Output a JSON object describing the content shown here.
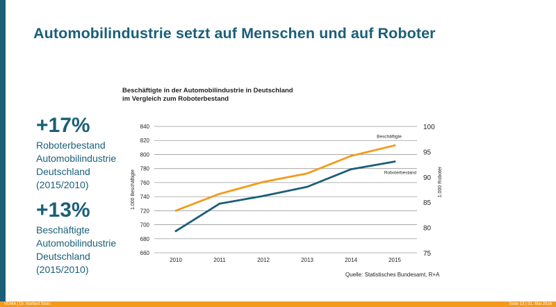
{
  "slide": {
    "title": "Automobilindustrie setzt auf Menschen und auf Roboter",
    "footer_left": "VDMA | Dr. Norbert Stein",
    "footer_right": "Seite 13 | 31. Mai 2016"
  },
  "stats": [
    {
      "value": "+17%",
      "lines": [
        "Roboterbestand",
        "Automobilindustrie",
        "Deutschland",
        "(2015/2010)"
      ]
    },
    {
      "value": "+13%",
      "lines": [
        "Beschäftigte",
        "Automobilindustrie",
        "Deutschland",
        "(2015/2010)"
      ]
    }
  ],
  "chart_data": {
    "type": "line",
    "title": [
      "Beschäftigte in der Automobilindustrie in Deutschland",
      "im Vergleich zum Roboterbestand"
    ],
    "categories": [
      "2010",
      "2011",
      "2012",
      "2013",
      "2014",
      "2015"
    ],
    "ylabel_left": "1.000 Beschäftigte",
    "ylabel_right": "1.000 Roboter",
    "ylim_left": [
      660,
      840
    ],
    "yticks_left": [
      "840",
      "820",
      "800",
      "780",
      "760",
      "740",
      "720",
      "700",
      "680",
      "660"
    ],
    "ylim_right": [
      75,
      100
    ],
    "yticks_right": [
      "100",
      "95",
      "90",
      "85",
      "80",
      "75"
    ],
    "series": [
      {
        "name": "Beschäftigte",
        "axis": "left",
        "color": "#f39a1b",
        "values": [
          720,
          744,
          761,
          773,
          798,
          813
        ]
      },
      {
        "name": "Roboterbestand",
        "axis": "left",
        "color": "#1a5f78",
        "values": [
          691,
          730,
          741,
          754,
          779,
          790
        ]
      }
    ],
    "source": "Quelle: Statistisches Bundesamt, R+A"
  }
}
